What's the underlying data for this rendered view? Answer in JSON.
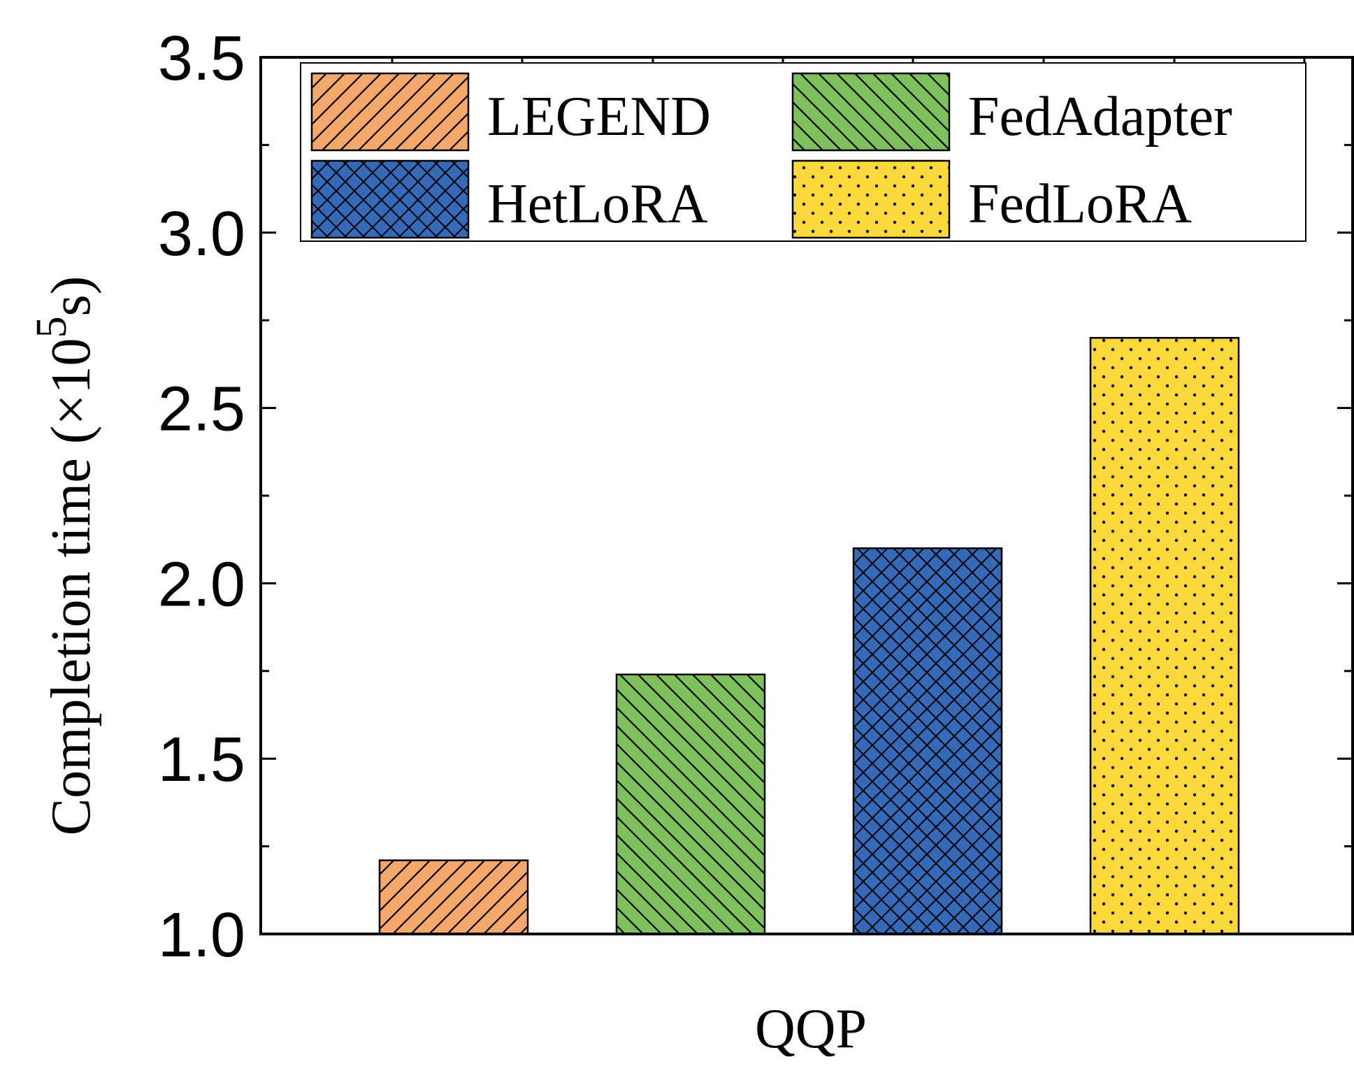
{
  "chart_data": {
    "type": "bar",
    "categories": [
      "QQP"
    ],
    "series": [
      {
        "name": "LEGEND",
        "value": 1.21,
        "color": "#f4a86a",
        "pattern": "diag-up"
      },
      {
        "name": "FedAdapter",
        "value": 1.74,
        "color": "#7dc05c",
        "pattern": "diag-down"
      },
      {
        "name": "HetLoRA",
        "value": 2.1,
        "color": "#356ab8",
        "pattern": "crosshatch"
      },
      {
        "name": "FedLoRA",
        "value": 2.7,
        "color": "#fbd93a",
        "pattern": "dots"
      }
    ],
    "xlabel": "QQP",
    "ylabel": "Completion time (×10",
    "ylabel_sup": "5",
    "ylabel_suffix": "s)",
    "ylim": [
      1.0,
      3.5
    ],
    "yticks": [
      "1.0",
      "1.5",
      "2.0",
      "2.5",
      "3.0",
      "3.5"
    ],
    "legend": {
      "placement": "top",
      "columns": 2
    },
    "grid": false
  }
}
